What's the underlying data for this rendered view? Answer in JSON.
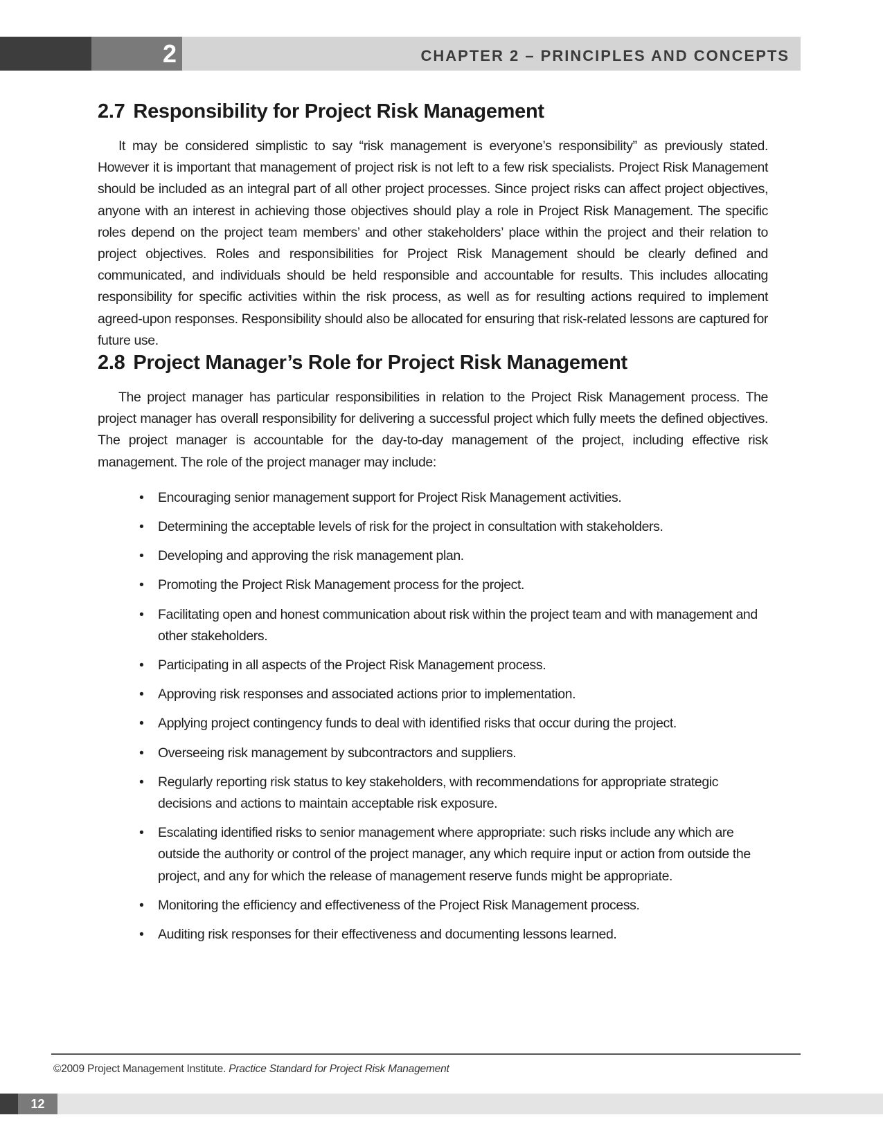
{
  "header": {
    "chapter_number": "2",
    "chapter_title": "CHAPTER 2 – PRINCIPLES AND CONCEPTS"
  },
  "sections": [
    {
      "number": "2.7",
      "title": "Responsibility for Project Risk Management",
      "paragraph": "It may be considered simplistic to say “risk management is everyone’s responsibility” as previously stated. However it is important that management of project risk is not left to a few risk specialists. Project Risk Management should be included as an integral part of all other project processes. Since project risks can affect project objectives, anyone with an interest in achieving those objectives should play a role in Project Risk Management. The specific roles depend on the project team members’ and other stakeholders’ place within the project and their relation to project objectives. Roles and responsibilities for Project Risk Management should be clearly defined and communicated, and individuals should be held responsible and accountable for results. This includes allocating responsibility for specific activities within the risk process, as well as for resulting actions required to implement agreed-upon responses. Responsibility should also be allocated for ensuring that risk-related lessons are captured for future use."
    },
    {
      "number": "2.8",
      "title": "Project Manager’s Role for Project Risk Management",
      "paragraph": "The project manager has particular responsibilities in relation to the Project Risk Management process. The project manager has overall responsibility for delivering a successful project which fully meets the defined objectives. The project manager is accountable for the day-to-day management of the project, including effective risk management. The role of the project manager may include:",
      "bullets": [
        "Encouraging senior management support for Project Risk Management activities.",
        "Determining the acceptable levels of risk for the project in consultation with stakeholders.",
        "Developing and approving the risk management plan.",
        "Promoting the Project Risk Management process for the project.",
        "Facilitating open and honest communication about risk within the project team and with management and other stakeholders.",
        "Participating in all aspects of the Project Risk Management process.",
        "Approving risk responses and associated actions prior to implementation.",
        "Applying project contingency funds to deal with identified risks that occur during the project.",
        "Overseeing risk management by subcontractors and suppliers.",
        "Regularly reporting risk status to key stakeholders, with recommendations for appropriate strategic decisions and actions to maintain acceptable risk exposure.",
        "Escalating identified risks to senior management where appropriate: such risks include any which are outside the authority or control of the project manager, any which require input or action from outside the project, and any for which the release of management reserve funds might be appropriate.",
        "Monitoring the efficiency and effectiveness of the Project Risk Management process.",
        "Auditing risk responses for their effectiveness and documenting lessons learned."
      ]
    }
  ],
  "footer": {
    "copyright": "©2009 Project Management Institute.",
    "publication": "Practice Standard for Project Risk Management",
    "page_number": "12"
  }
}
